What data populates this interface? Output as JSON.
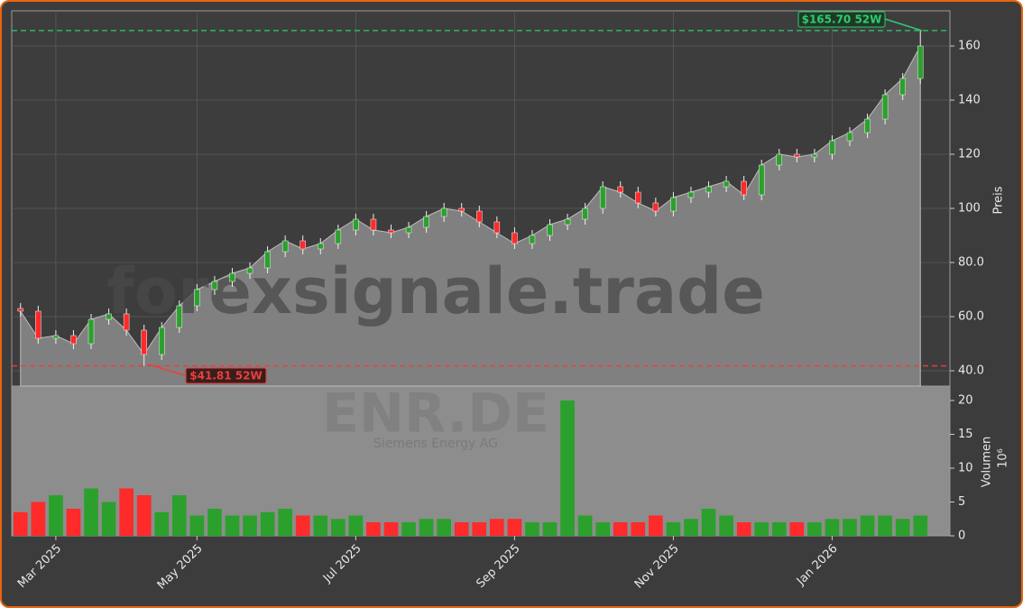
{
  "chart_data": [
    {
      "type": "candlestick",
      "watermark": "forexsignale.trade",
      "ylabel": "Preis",
      "categories": [
        null,
        null,
        "Mar 2025",
        null,
        null,
        null,
        null,
        null,
        null,
        null,
        "May 2025",
        null,
        null,
        null,
        null,
        null,
        null,
        null,
        null,
        "Jul 2025",
        null,
        null,
        null,
        null,
        null,
        null,
        null,
        null,
        "Sep 2025",
        null,
        null,
        null,
        null,
        null,
        null,
        null,
        null,
        "Nov 2025",
        null,
        null,
        null,
        null,
        null,
        null,
        null,
        null,
        "Jan 2026",
        null,
        null,
        null,
        null,
        null
      ],
      "open": [
        63,
        62,
        52,
        53,
        50,
        59,
        61,
        55,
        46,
        56,
        64,
        70,
        73,
        76,
        78,
        84,
        88,
        85,
        87,
        92,
        96,
        92,
        91,
        93,
        97,
        100,
        99,
        95,
        91,
        87,
        90,
        94,
        96,
        100,
        108,
        106,
        102,
        99,
        104,
        106,
        108,
        110,
        105,
        116,
        120,
        119,
        120,
        125,
        128,
        133,
        142,
        148
      ],
      "high": [
        65,
        64,
        55,
        55,
        61,
        63,
        63,
        57,
        58,
        66,
        72,
        75,
        78,
        80,
        86,
        90,
        90,
        89,
        94,
        98,
        98,
        94,
        95,
        99,
        102,
        102,
        101,
        97,
        93,
        92,
        96,
        98,
        102,
        110,
        110,
        108,
        104,
        106,
        108,
        110,
        112,
        112,
        118,
        122,
        122,
        122,
        127,
        130,
        135,
        144,
        150,
        165.7
      ],
      "low": [
        60,
        50,
        50,
        48,
        48,
        57,
        53,
        41.81,
        44,
        54,
        62,
        68,
        71,
        74,
        76,
        82,
        83,
        83,
        85,
        90,
        90,
        89,
        89,
        91,
        95,
        97,
        93,
        89,
        85,
        85,
        88,
        92,
        94,
        98,
        104,
        100,
        97,
        97,
        102,
        104,
        106,
        103,
        103,
        114,
        117,
        117,
        118,
        123,
        126,
        131,
        140,
        146
      ],
      "close": [
        62,
        52,
        53,
        50,
        59,
        61,
        55,
        46,
        56,
        64,
        70,
        73,
        76,
        78,
        84,
        88,
        85,
        87,
        92,
        96,
        92,
        91,
        93,
        97,
        100,
        99,
        95,
        91,
        87,
        90,
        94,
        96,
        100,
        108,
        106,
        102,
        99,
        104,
        106,
        108,
        110,
        105,
        116,
        120,
        119,
        120,
        125,
        128,
        133,
        142,
        148,
        160
      ],
      "up_color": "#2ca02c",
      "down_color": "#ff2a2a",
      "area_color": "#808080",
      "ylim": [
        34.33,
        173
      ],
      "yticks": [
        {
          "value": 40,
          "label": "40.0"
        },
        {
          "value": 60,
          "label": "60.0"
        },
        {
          "value": 80,
          "label": "80.0"
        },
        100,
        120,
        140,
        160
      ],
      "grid": true,
      "annotations": [
        {
          "value": 165.7,
          "label": "$165.70 52W",
          "color": "#2ecc71"
        },
        {
          "value": 41.81,
          "label": "$41.81 52W",
          "color": "#e8413c"
        }
      ]
    },
    {
      "type": "volume",
      "watermark": "ENR.DE",
      "subtitle": "Siemens Energy AG",
      "ylabel": "Volumen",
      "exponent": "10⁶",
      "values": [
        3.5,
        5,
        6,
        4,
        7,
        5,
        7,
        6,
        3.5,
        6,
        3,
        4,
        3,
        3,
        3.5,
        4,
        3,
        3,
        2.5,
        3,
        2,
        2,
        2,
        2.5,
        2.5,
        2,
        2,
        2.5,
        2.5,
        2,
        2,
        20,
        3,
        2,
        2,
        2,
        3,
        2,
        2.5,
        4,
        3,
        2,
        2,
        2,
        2,
        2,
        2.5,
        2.5,
        3,
        3,
        2.5,
        3
      ],
      "ylim": [
        0,
        22.13
      ],
      "yticks": [
        0,
        5,
        10,
        15,
        20
      ]
    }
  ]
}
